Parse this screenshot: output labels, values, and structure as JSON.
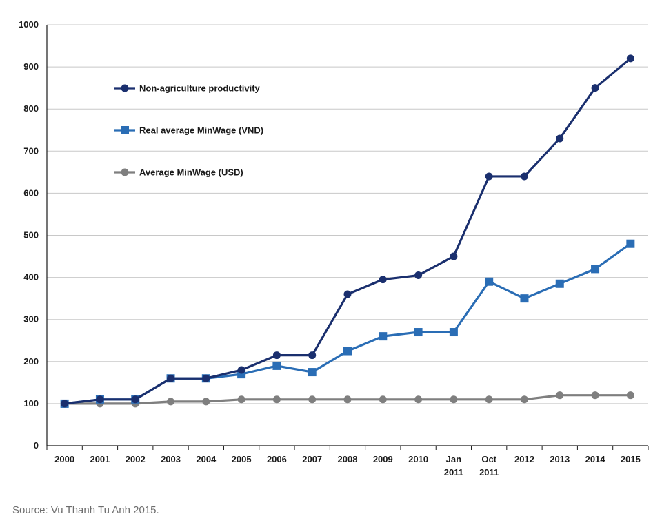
{
  "chart_data": {
    "type": "line",
    "title": "",
    "xlabel": "",
    "ylabel": "",
    "ylim": [
      0,
      1000
    ],
    "yticks": [
      0,
      100,
      200,
      300,
      400,
      500,
      600,
      700,
      800,
      900,
      1000
    ],
    "grid": true,
    "legend_position": "top-left",
    "categories": [
      [
        "2000"
      ],
      [
        "2001"
      ],
      [
        "2002"
      ],
      [
        "2003"
      ],
      [
        "2004"
      ],
      [
        "2005"
      ],
      [
        "2006"
      ],
      [
        "2007"
      ],
      [
        "2008"
      ],
      [
        "2009"
      ],
      [
        "2010"
      ],
      [
        "Jan",
        "2011"
      ],
      [
        "Oct",
        "2011"
      ],
      [
        "2012"
      ],
      [
        "2013"
      ],
      [
        "2014"
      ],
      [
        "2015"
      ]
    ],
    "series": [
      {
        "name": "Non-agriculture productivity",
        "color": "#1a2f6e",
        "marker": "circle",
        "values": [
          100,
          110,
          110,
          160,
          160,
          180,
          215,
          215,
          360,
          395,
          405,
          450,
          640,
          640,
          730,
          850,
          920
        ]
      },
      {
        "name": "Real average MinWage (VND)",
        "color": "#2a6db5",
        "marker": "square",
        "values": [
          100,
          110,
          110,
          160,
          160,
          170,
          190,
          175,
          225,
          260,
          270,
          270,
          390,
          350,
          385,
          420,
          480
        ]
      },
      {
        "name": "Average MinWage (USD)",
        "color": "#7f7f7f",
        "marker": "circle",
        "values": [
          100,
          100,
          100,
          105,
          105,
          110,
          110,
          110,
          110,
          110,
          110,
          110,
          110,
          110,
          120,
          120,
          120
        ]
      }
    ],
    "gridline_color": "#c8c8c8",
    "axis_color": "#1a1a1a"
  },
  "source": "Source: Vu Thanh Tu Anh 2015."
}
